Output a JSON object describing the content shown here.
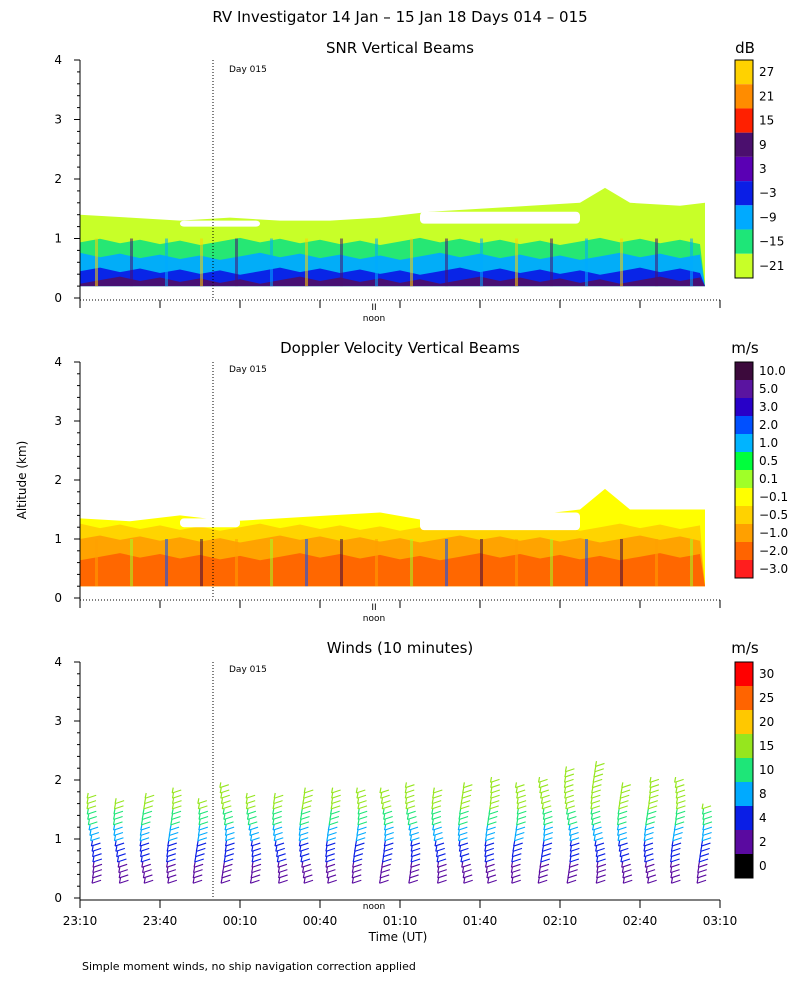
{
  "figure": {
    "title": "RV Investigator  14 Jan – 15 Jan 18 Days 014 – 015",
    "ylabel": "Altitude (km)",
    "xlabel": "Time (UT)",
    "footnote": "Simple moment winds, no ship navigation correction applied",
    "day_marker": "Day 015",
    "noon_mark": "II",
    "noon_label": "noon"
  },
  "chart_data": [
    {
      "type": "heatmap",
      "title": "SNR Vertical Beams",
      "units": "dB",
      "ylim": [
        0,
        4
      ],
      "yticks": [
        0,
        1,
        2,
        3,
        4
      ],
      "colorbar": {
        "labels": [
          "27",
          "21",
          "15",
          "9",
          "3",
          "−3",
          "−9",
          "−15",
          "−21"
        ],
        "colors": [
          "#ffd200",
          "#ff8c00",
          "#ff2000",
          "#4b0f6e",
          "#5a00b4",
          "#0a1ee6",
          "#00aaff",
          "#1ee678",
          "#c8ff28"
        ]
      },
      "layers": [
        {
          "top": 0.3,
          "color": "#4b0f6e"
        },
        {
          "top": 0.45,
          "color": "#0a1ee6"
        },
        {
          "top": 0.7,
          "color": "#00aaff"
        },
        {
          "top": 0.95,
          "color": "#1ee678"
        },
        {
          "top": 1.3,
          "color": "#c8ff28"
        }
      ],
      "top_profile": [
        [
          0,
          1.4
        ],
        [
          10,
          1.35
        ],
        [
          20,
          1.3
        ],
        [
          30,
          1.35
        ],
        [
          40,
          1.3
        ],
        [
          50,
          1.3
        ],
        [
          60,
          1.35
        ],
        [
          70,
          1.45
        ],
        [
          80,
          1.5
        ],
        [
          90,
          1.55
        ],
        [
          100,
          1.6
        ],
        [
          105,
          1.85
        ],
        [
          110,
          1.6
        ],
        [
          120,
          1.55
        ],
        [
          125,
          1.6
        ]
      ],
      "gaps": [
        {
          "x": [
            68,
            100
          ],
          "y": [
            1.25,
            1.45
          ]
        },
        {
          "x": [
            20,
            36
          ],
          "y": [
            1.2,
            1.3
          ]
        }
      ]
    },
    {
      "type": "heatmap",
      "title": "Doppler Velocity Vertical Beams",
      "units": "m/s",
      "ylim": [
        0,
        4
      ],
      "yticks": [
        0,
        1,
        2,
        3,
        4
      ],
      "colorbar": {
        "labels": [
          "10.0",
          "5.0",
          "3.0",
          "2.0",
          "1.0",
          "0.5",
          "0.1",
          "−0.1",
          "−0.5",
          "−1.0",
          "−2.0",
          "−3.0"
        ],
        "colors": [
          "#3c0a3c",
          "#5a14a0",
          "#2800c8",
          "#0050ff",
          "#00b4ff",
          "#00ff3c",
          "#a0ff28",
          "#ffff00",
          "#ffd200",
          "#ffa000",
          "#ff6400",
          "#ff1e1e"
        ]
      },
      "layers": [
        {
          "top": 0.7,
          "color": "#ff6400"
        },
        {
          "top": 1.0,
          "color": "#ffa000"
        },
        {
          "top": 1.2,
          "color": "#ffd200"
        },
        {
          "top": 1.35,
          "color": "#ffff00"
        }
      ],
      "top_profile": [
        [
          0,
          1.35
        ],
        [
          10,
          1.3
        ],
        [
          20,
          1.4
        ],
        [
          30,
          1.3
        ],
        [
          40,
          1.35
        ],
        [
          50,
          1.4
        ],
        [
          60,
          1.45
        ],
        [
          70,
          1.3
        ],
        [
          80,
          1.35
        ],
        [
          90,
          1.4
        ],
        [
          100,
          1.5
        ],
        [
          105,
          1.85
        ],
        [
          110,
          1.5
        ],
        [
          120,
          1.5
        ],
        [
          125,
          1.5
        ]
      ],
      "gaps": [
        {
          "x": [
            68,
            100
          ],
          "y": [
            1.15,
            1.45
          ]
        },
        {
          "x": [
            20,
            32
          ],
          "y": [
            1.2,
            1.35
          ]
        }
      ]
    },
    {
      "type": "wind_barbs",
      "title": "Winds (10 minutes)",
      "units": "m/s",
      "ylim": [
        0,
        4
      ],
      "yticks": [
        0,
        1,
        2,
        3,
        4
      ],
      "colorbar": {
        "labels": [
          "30",
          "25",
          "20",
          "15",
          "10",
          "8",
          "4",
          "2",
          "0"
        ],
        "colors": [
          "#ff0000",
          "#ff6400",
          "#ffc800",
          "#96e61e",
          "#1ee678",
          "#00aaff",
          "#0a1ee6",
          "#5a0aa0",
          "#000000"
        ]
      },
      "xticks": [
        "23:10",
        "23:40",
        "00:10",
        "00:40",
        "01:10",
        "01:40",
        "02:10",
        "02:40",
        "03:10"
      ],
      "profile_tops_km": [
        1.75,
        1.65,
        1.75,
        1.85,
        1.65,
        1.9,
        1.7,
        1.75,
        1.8,
        1.85,
        1.8,
        1.8,
        1.9,
        1.85,
        1.9,
        2.0,
        1.9,
        2.05,
        2.15,
        2.25,
        1.95,
        2.05,
        2.0,
        1.55
      ]
    }
  ]
}
